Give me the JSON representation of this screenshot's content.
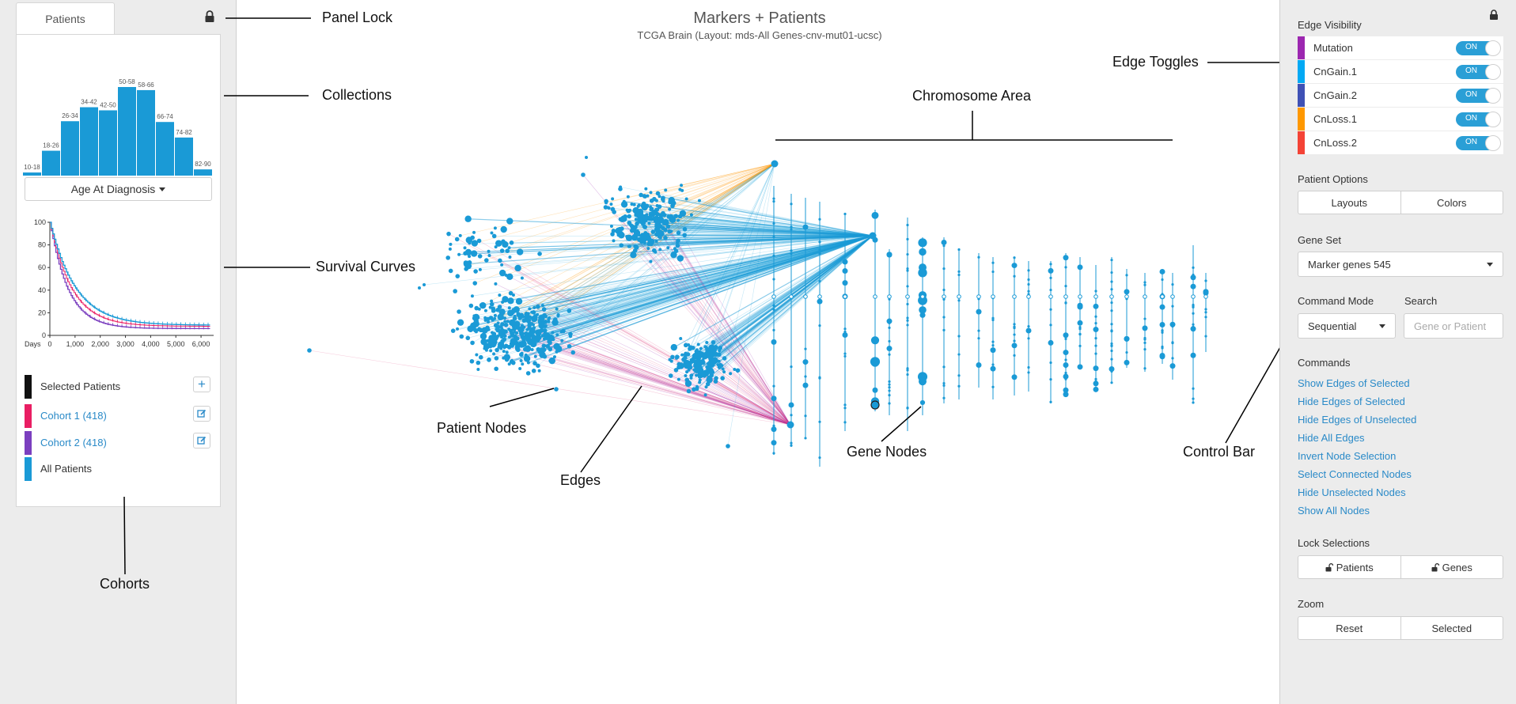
{
  "left_panel": {
    "tab": "Patients",
    "lock_icon": "lock-icon",
    "histogram": {
      "title": "Age At Diagnosis",
      "categories": [
        "10-18",
        "18-26",
        "26-34",
        "34-42",
        "42-50",
        "50-58",
        "58-66",
        "66-74",
        "74-82",
        "82-90"
      ],
      "values": [
        4,
        32,
        70,
        88,
        84,
        114,
        110,
        69,
        49,
        8
      ]
    },
    "survival": {
      "x_label": "Days",
      "x_ticks": [
        "0",
        "1,000",
        "2,000",
        "3,000",
        "4,000",
        "5,000",
        "6,000"
      ],
      "y_ticks": [
        "0",
        "20",
        "40",
        "60",
        "80",
        "100"
      ]
    },
    "cohorts": [
      {
        "label": "Selected Patients",
        "color": "#111111",
        "link": false,
        "action_icon": "plus-icon"
      },
      {
        "label": "Cohort 1 (418)",
        "color": "#e91e63",
        "link": true,
        "action_icon": "edit-icon"
      },
      {
        "label": "Cohort 2 (418)",
        "color": "#7b3fbf",
        "link": true,
        "action_icon": "edit-icon"
      },
      {
        "label": "All Patients",
        "color": "#1a9ad6",
        "link": false
      }
    ]
  },
  "main": {
    "title": "Markers + Patients",
    "subtitle": "TCGA Brain (Layout: mds-All Genes-cnv-mut01-ucsc)"
  },
  "annotations": {
    "panel_lock": "Panel Lock",
    "collections": "Collections",
    "survival_curves": "Survival Curves",
    "cohorts": "Cohorts",
    "patient_nodes": "Patient Nodes",
    "edges": "Edges",
    "chromosome_area": "Chromosome Area",
    "gene_nodes": "Gene Nodes",
    "edge_toggles": "Edge Toggles",
    "control_bar": "Control Bar"
  },
  "right_panel": {
    "lock_icon": "lock-icon",
    "edge_visibility": {
      "heading": "Edge Visibility",
      "items": [
        {
          "label": "Mutation",
          "color": "#9c27b0",
          "state": "ON"
        },
        {
          "label": "CnGain.1",
          "color": "#03a9f4",
          "state": "ON"
        },
        {
          "label": "CnGain.2",
          "color": "#3f51b5",
          "state": "ON"
        },
        {
          "label": "CnLoss.1",
          "color": "#ff9800",
          "state": "ON"
        },
        {
          "label": "CnLoss.2",
          "color": "#f44336",
          "state": "ON"
        }
      ]
    },
    "patient_options": {
      "heading": "Patient Options",
      "layouts": "Layouts",
      "colors": "Colors"
    },
    "gene_set": {
      "heading": "Gene Set",
      "value": "Marker genes 545"
    },
    "command_mode": {
      "heading": "Command Mode",
      "value": "Sequential"
    },
    "search": {
      "heading": "Search",
      "placeholder": "Gene or Patient"
    },
    "commands": {
      "heading": "Commands",
      "items": [
        "Show Edges of Selected",
        "Hide Edges of Selected",
        "Hide Edges of Unselected",
        "Hide All Edges",
        "Invert Node Selection",
        "Select Connected Nodes",
        "Hide Unselected Nodes",
        "Show All Nodes"
      ]
    },
    "lock_selections": {
      "heading": "Lock Selections",
      "patients": "Patients",
      "genes": "Genes"
    },
    "zoom": {
      "heading": "Zoom",
      "reset": "Reset",
      "selected": "Selected"
    }
  }
}
